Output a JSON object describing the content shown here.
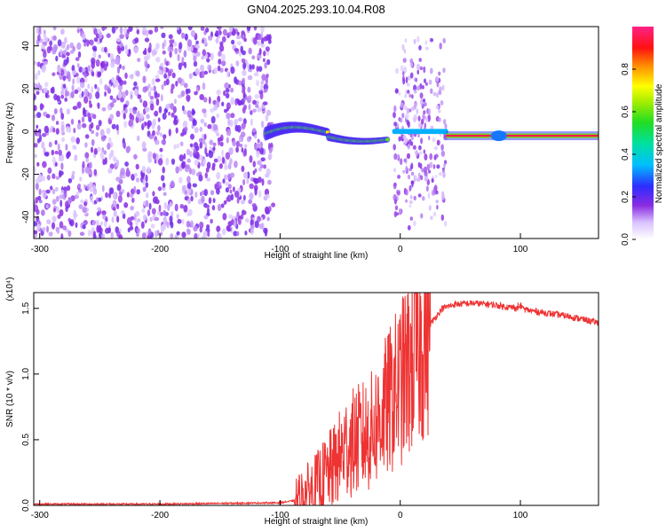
{
  "title": "GN04.2025.293.10.04.R08",
  "chart_data": [
    {
      "type": "heatmap",
      "xlabel": "Height of straight line (km)",
      "ylabel": "Frequency (Hz)",
      "xlim": [
        -305,
        165
      ],
      "ylim": [
        -50,
        49
      ],
      "xticks": [
        -300,
        -200,
        -100,
        0,
        100
      ],
      "xtick_labels": [
        "-300",
        "-200",
        "-100",
        "0",
        "100"
      ],
      "yticks": [
        -40,
        -20,
        0,
        20,
        40
      ],
      "ytick_labels": [
        "-40",
        "-20",
        "0",
        "20",
        "40"
      ],
      "colorbar": {
        "label": "Normalized spectral amplitude",
        "range": [
          0,
          1
        ],
        "ticks": [
          "0.0",
          "0.2",
          "0.4",
          "0.6",
          "0.8"
        ],
        "tick_values": [
          0.0,
          0.2,
          0.4,
          0.6,
          0.8
        ]
      },
      "regions": [
        {
          "description": "broadband noise",
          "x_range": [
            -305,
            -108
          ],
          "freq_range": [
            -50,
            49
          ],
          "amplitude": 0.15
        },
        {
          "description": "wavy signal trace",
          "x_range": [
            -112,
            -10
          ],
          "amplitude": 0.35
        },
        {
          "description": "noise burst",
          "x_range": [
            -5,
            38
          ],
          "freq_range": [
            -48,
            47
          ],
          "amplitude": 0.15
        },
        {
          "description": "steady carrier",
          "x_range": [
            38,
            165
          ],
          "freq": -2,
          "amplitude": 0.95
        }
      ]
    },
    {
      "type": "line",
      "xlabel": "Height of straight line (km)",
      "ylabel": "SNR (10 * v/v)",
      "y_multiplier": "(x10⁴)",
      "xlim": [
        -305,
        165
      ],
      "ylim": [
        0,
        1.62
      ],
      "xticks": [
        -300,
        -200,
        -100,
        0,
        100
      ],
      "xtick_labels": [
        "-300",
        "-200",
        "-100",
        "0",
        "100"
      ],
      "yticks": [
        0.0,
        0.5,
        1.0,
        1.5
      ],
      "ytick_labels": [
        "0.0",
        "0.5",
        "1.0",
        "1.5"
      ],
      "series": [
        {
          "name": "SNR",
          "color": "#ee3333",
          "x": [
            -305,
            -200,
            -100,
            -85,
            -70,
            -55,
            -45,
            -35,
            -25,
            -15,
            -5,
            5,
            15,
            25,
            35,
            45,
            60,
            75,
            90,
            100,
            110,
            125,
            140,
            155,
            165
          ],
          "y": [
            0.01,
            0.01,
            0.02,
            0.04,
            0.15,
            0.3,
            0.45,
            0.5,
            0.55,
            0.7,
            0.85,
            1.0,
            1.2,
            1.38,
            1.5,
            1.53,
            1.54,
            1.53,
            1.51,
            1.5,
            1.48,
            1.46,
            1.44,
            1.41,
            1.39
          ]
        }
      ]
    }
  ]
}
